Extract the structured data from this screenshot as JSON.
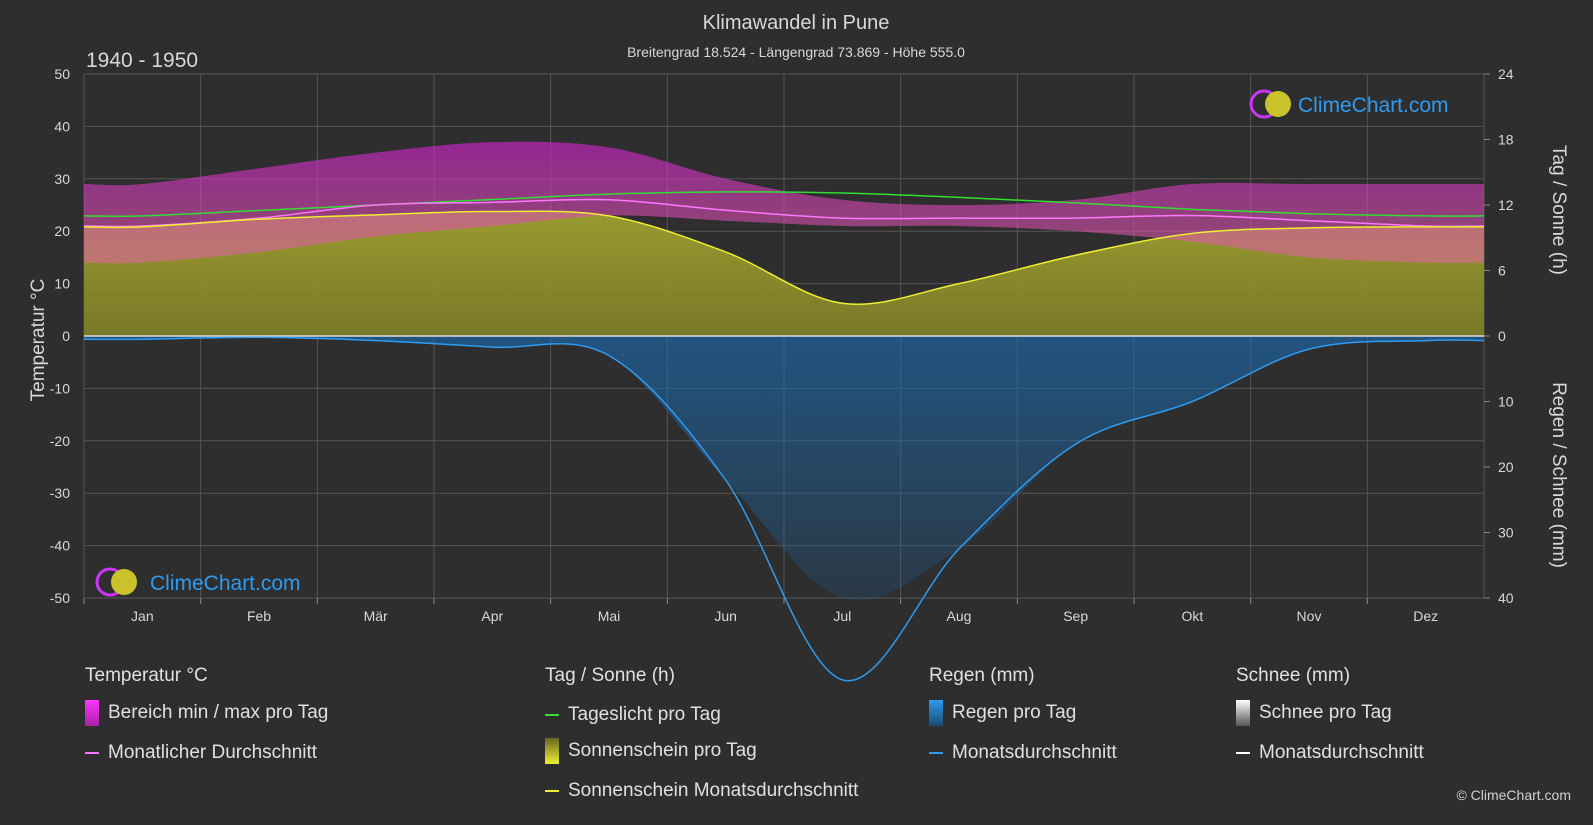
{
  "title": "Klimawandel in Pune",
  "subtitle": "Breitengrad 18.524 - Längengrad 73.869 - Höhe 555.0",
  "period": "1940 - 1950",
  "brand": "ClimeChart.com",
  "copyright": "© ClimeChart.com",
  "colors": {
    "background": "#2e2e2e",
    "temp_range": "#cc22cc",
    "temp_avg": "#ff77ff",
    "daylight": "#33dd33",
    "sunshine_band": "#9a9a2a",
    "sunshine_avg": "#eeee33",
    "rain": "#1a6ab0",
    "rain_avg": "#2e9bf0",
    "snow_avg": "#ffffff",
    "brand_text": "#2e9bf0"
  },
  "chart_data": {
    "type": "line",
    "months": [
      "Jan",
      "Feb",
      "Mär",
      "Apr",
      "Mai",
      "Jun",
      "Jul",
      "Aug",
      "Sep",
      "Okt",
      "Nov",
      "Dez"
    ],
    "axes": {
      "left": {
        "label": "Temperatur °C",
        "min": -50,
        "max": 50,
        "ticks": [
          50,
          40,
          30,
          20,
          10,
          0,
          -10,
          -20,
          -30,
          -40,
          -50
        ]
      },
      "right_top": {
        "label": "Tag / Sonne (h)",
        "min": 0,
        "max": 24,
        "ticks": [
          24,
          18,
          12,
          6,
          0
        ]
      },
      "right_bottom": {
        "label": "Regen / Schnee (mm)",
        "min": 0,
        "max": 40,
        "ticks": [
          0,
          10,
          20,
          30,
          40
        ]
      }
    },
    "series": [
      {
        "name": "Bereich min / max pro Tag",
        "unit": "°C",
        "min": [
          14,
          16,
          19,
          21,
          23,
          22,
          21,
          21,
          20,
          18,
          15,
          14
        ],
        "max": [
          29,
          32,
          35,
          37,
          36,
          30,
          26,
          25,
          26,
          29,
          29,
          29
        ]
      },
      {
        "name": "Monatlicher Durchschnitt",
        "unit": "°C",
        "values": [
          21.0,
          22.5,
          25.0,
          25.5,
          26.0,
          24.0,
          22.5,
          22.5,
          22.5,
          23.0,
          22.0,
          21.0
        ]
      },
      {
        "name": "Tageslicht pro Tag",
        "unit": "h",
        "values": [
          11.0,
          11.5,
          12.0,
          12.5,
          13.0,
          13.2,
          13.1,
          12.7,
          12.2,
          11.6,
          11.2,
          11.0
        ]
      },
      {
        "name": "Sonnenschein Monatsdurchschnitt",
        "unit": "h",
        "values": [
          10.0,
          10.7,
          11.1,
          11.4,
          11.0,
          7.7,
          3.0,
          4.8,
          7.4,
          9.4,
          9.9,
          10.0
        ]
      },
      {
        "name": "Regen Monatsdurchschnitt",
        "unit": "mm",
        "values": [
          0.5,
          0.2,
          0.7,
          1.7,
          3.0,
          22.0,
          52.5,
          32.5,
          16.5,
          10.0,
          2.0,
          0.7
        ]
      },
      {
        "name": "Schnee Monatsdurchschnitt",
        "unit": "mm",
        "values": [
          0,
          0,
          0,
          0,
          0,
          0,
          0,
          0,
          0,
          0,
          0,
          0
        ]
      }
    ]
  },
  "legend": {
    "temp": {
      "heading": "Temperatur °C",
      "range": "Bereich min / max pro Tag",
      "avg": "Monatlicher Durchschnitt"
    },
    "sun": {
      "heading": "Tag / Sonne (h)",
      "daylight": "Tageslicht pro Tag",
      "sunshine": "Sonnenschein pro Tag",
      "sun_avg": "Sonnenschein Monatsdurchschnitt"
    },
    "rain": {
      "heading": "Regen (mm)",
      "per_day": "Regen pro Tag",
      "avg": "Monatsdurchschnitt"
    },
    "snow": {
      "heading": "Schnee (mm)",
      "per_day": "Schnee pro Tag",
      "avg": "Monatsdurchschnitt"
    }
  }
}
